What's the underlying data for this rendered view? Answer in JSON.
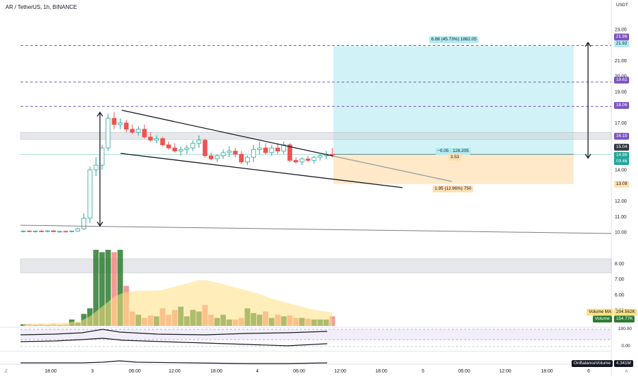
{
  "header": {
    "title": "AR / TetherUS, 1h, BINANCE",
    "currency": "USDT"
  },
  "colors": {
    "up": "#26a69a",
    "down": "#ef5350",
    "vol_up": "#2e7d32",
    "vol_down": "#f28b82",
    "vol_ma": "#ffe082",
    "purple": "#7e57c2",
    "target_zone": "#b2ebf2",
    "stop_zone": "#ffe0b2",
    "grey_zone": "#d1d4dc"
  },
  "chart_data": {
    "type": "candlestick",
    "price_axis": {
      "ticks": [
        "23.00",
        "22.00",
        "21.00",
        "20.00",
        "19.00",
        "17.00",
        "14.00",
        "12.00",
        "11.00",
        "10.00",
        "8.00",
        "7.00",
        "6.00",
        "5.00"
      ]
    },
    "time_axis": {
      "ticks": [
        "18:00",
        "3",
        "06:00",
        "12:00",
        "18:00",
        "4",
        "06:00",
        "12:00",
        "18:00",
        "5",
        "06:00",
        "12:00",
        "18:00",
        "6"
      ]
    },
    "price_labels": {
      "p1": "21.96",
      "p2": "21.92",
      "p3": "19.62",
      "p4": "18.06",
      "p5": "16.15",
      "p6": "15.04",
      "p7": "14.99",
      "countdown": "03:46",
      "p8": "13.09"
    },
    "position_tool": {
      "target_label": "6.88 (45.73%) 1882.05",
      "center_label_1": "−0.05 · 128.205",
      "center_label_2": "3.53",
      "stop_label": "1.95 (12.96%) 750"
    },
    "volume": {
      "ma_label": "Volume MA",
      "ma_value": "204.562K",
      "label": "Volume",
      "value": "154.77K"
    },
    "obv": {
      "label": "OnBalanceVolume",
      "value": "4.341M"
    },
    "stoch_ticks": [
      "100.00",
      "0.00"
    ],
    "candles": [
      {
        "o": 10.06,
        "h": 10.12,
        "l": 10.0,
        "c": 10.08
      },
      {
        "o": 10.08,
        "h": 10.14,
        "l": 10.02,
        "c": 10.04
      },
      {
        "o": 10.04,
        "h": 10.1,
        "l": 9.98,
        "c": 10.07
      },
      {
        "o": 10.07,
        "h": 10.15,
        "l": 10.02,
        "c": 10.05
      },
      {
        "o": 10.05,
        "h": 10.12,
        "l": 10.0,
        "c": 10.09
      },
      {
        "o": 10.09,
        "h": 10.14,
        "l": 10.02,
        "c": 10.03
      },
      {
        "o": 10.03,
        "h": 10.1,
        "l": 9.97,
        "c": 10.06
      },
      {
        "o": 10.06,
        "h": 10.12,
        "l": 10.0,
        "c": 10.04
      },
      {
        "o": 10.04,
        "h": 10.1,
        "l": 9.99,
        "c": 10.08
      },
      {
        "o": 10.08,
        "h": 10.3,
        "l": 10.05,
        "c": 10.22
      },
      {
        "o": 10.22,
        "h": 11.2,
        "l": 10.15,
        "c": 10.9
      },
      {
        "o": 10.9,
        "h": 14.2,
        "l": 10.6,
        "c": 14.0
      },
      {
        "o": 14.0,
        "h": 14.8,
        "l": 13.6,
        "c": 14.3
      },
      {
        "o": 14.3,
        "h": 15.6,
        "l": 14.0,
        "c": 15.4
      },
      {
        "o": 15.4,
        "h": 17.6,
        "l": 15.2,
        "c": 17.3
      },
      {
        "o": 17.3,
        "h": 17.7,
        "l": 16.6,
        "c": 16.9
      },
      {
        "o": 16.9,
        "h": 17.3,
        "l": 16.6,
        "c": 17.0
      },
      {
        "o": 17.0,
        "h": 17.2,
        "l": 16.4,
        "c": 16.6
      },
      {
        "o": 16.6,
        "h": 16.9,
        "l": 16.3,
        "c": 16.4
      },
      {
        "o": 16.4,
        "h": 16.8,
        "l": 16.2,
        "c": 16.6
      },
      {
        "o": 16.6,
        "h": 16.9,
        "l": 16.0,
        "c": 16.1
      },
      {
        "o": 16.1,
        "h": 16.4,
        "l": 15.8,
        "c": 15.9
      },
      {
        "o": 15.9,
        "h": 16.2,
        "l": 15.7,
        "c": 16.0
      },
      {
        "o": 16.0,
        "h": 16.1,
        "l": 15.5,
        "c": 15.6
      },
      {
        "o": 15.6,
        "h": 15.8,
        "l": 15.3,
        "c": 15.4
      },
      {
        "o": 15.4,
        "h": 15.7,
        "l": 15.1,
        "c": 15.2
      },
      {
        "o": 15.2,
        "h": 15.5,
        "l": 14.9,
        "c": 15.3
      },
      {
        "o": 15.3,
        "h": 15.6,
        "l": 15.0,
        "c": 15.4
      },
      {
        "o": 15.4,
        "h": 15.9,
        "l": 15.2,
        "c": 15.7
      },
      {
        "o": 15.7,
        "h": 16.2,
        "l": 15.4,
        "c": 15.9
      },
      {
        "o": 15.9,
        "h": 16.0,
        "l": 14.8,
        "c": 14.9
      },
      {
        "o": 14.9,
        "h": 15.1,
        "l": 14.6,
        "c": 14.7
      },
      {
        "o": 14.7,
        "h": 15.0,
        "l": 14.5,
        "c": 14.9
      },
      {
        "o": 14.9,
        "h": 15.3,
        "l": 14.7,
        "c": 15.1
      },
      {
        "o": 15.1,
        "h": 15.5,
        "l": 14.8,
        "c": 15.2
      },
      {
        "o": 15.2,
        "h": 15.4,
        "l": 14.8,
        "c": 15.0
      },
      {
        "o": 15.0,
        "h": 15.2,
        "l": 14.4,
        "c": 14.5
      },
      {
        "o": 14.5,
        "h": 14.9,
        "l": 14.3,
        "c": 14.8
      },
      {
        "o": 14.8,
        "h": 15.6,
        "l": 14.5,
        "c": 15.3
      },
      {
        "o": 15.3,
        "h": 15.8,
        "l": 15.0,
        "c": 15.4
      },
      {
        "o": 15.4,
        "h": 15.7,
        "l": 15.0,
        "c": 15.1
      },
      {
        "o": 15.1,
        "h": 15.6,
        "l": 14.9,
        "c": 15.4
      },
      {
        "o": 15.4,
        "h": 15.7,
        "l": 15.0,
        "c": 15.2
      },
      {
        "o": 15.2,
        "h": 15.8,
        "l": 15.0,
        "c": 15.6
      },
      {
        "o": 15.6,
        "h": 15.7,
        "l": 14.5,
        "c": 14.6
      },
      {
        "o": 14.6,
        "h": 14.8,
        "l": 14.4,
        "c": 14.5
      },
      {
        "o": 14.5,
        "h": 14.8,
        "l": 14.3,
        "c": 14.7
      },
      {
        "o": 14.7,
        "h": 14.9,
        "l": 14.5,
        "c": 14.6
      },
      {
        "o": 14.6,
        "h": 14.9,
        "l": 14.4,
        "c": 14.8
      },
      {
        "o": 14.8,
        "h": 15.0,
        "l": 14.6,
        "c": 14.9
      },
      {
        "o": 14.9,
        "h": 15.2,
        "l": 14.7,
        "c": 15.0
      },
      {
        "o": 15.0,
        "h": 15.4,
        "l": 14.8,
        "c": 14.99
      }
    ],
    "volumes": [
      2,
      2,
      1,
      2,
      1,
      2,
      1,
      2,
      8,
      4,
      15,
      22,
      95,
      92,
      95,
      92,
      95,
      50,
      18,
      14,
      10,
      13,
      12,
      22,
      14,
      20,
      24,
      12,
      20,
      18,
      26,
      14,
      10,
      14,
      8,
      8,
      10,
      22,
      16,
      14,
      18,
      10,
      14,
      12,
      13,
      10,
      10,
      9,
      8,
      8,
      8,
      12
    ],
    "volume_ma": [
      3,
      3,
      3,
      3,
      3,
      4,
      4,
      4,
      5,
      6,
      8,
      12,
      18,
      24,
      30,
      36,
      40,
      42,
      43,
      44,
      44,
      44,
      44,
      45,
      47,
      49,
      51,
      53,
      55,
      57,
      57,
      56,
      54,
      52,
      50,
      48,
      46,
      44,
      42,
      40,
      37,
      34,
      32,
      30,
      28,
      26,
      24,
      22,
      20,
      19,
      18,
      17
    ]
  }
}
